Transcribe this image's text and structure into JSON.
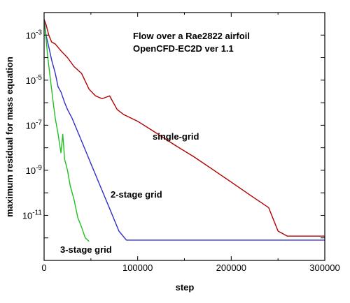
{
  "chart_data": {
    "type": "line",
    "title_lines": [
      "Flow over a Rae2822 airfoil",
      "OpenCFD-EC2D ver 1.1"
    ],
    "xlabel": "step",
    "ylabel": "maximum residual for mass equation",
    "xlim": [
      0,
      300000
    ],
    "ylim": [
      1e-13,
      0.01
    ],
    "y_scale": "log",
    "grid": false,
    "x_ticks": [
      {
        "value": 0,
        "label": "0"
      },
      {
        "value": 100000,
        "label": "100000"
      },
      {
        "value": 200000,
        "label": "200000"
      },
      {
        "value": 300000,
        "label": "300000"
      }
    ],
    "y_ticks": [
      {
        "exp": -3,
        "base": "10",
        "sup": "-3"
      },
      {
        "exp": -5,
        "base": "10",
        "sup": "-5"
      },
      {
        "exp": -7,
        "base": "10",
        "sup": "-7"
      },
      {
        "exp": -9,
        "base": "10",
        "sup": "-9"
      },
      {
        "exp": -11,
        "base": "10",
        "sup": "-11"
      }
    ],
    "series": [
      {
        "name": "single-grid",
        "color": "#b00000",
        "x": [
          0,
          2000,
          5000,
          8000,
          12000,
          18000,
          25000,
          32000,
          40000,
          48000,
          55000,
          62000,
          70000,
          78000,
          85000,
          100000,
          120000,
          140000,
          160000,
          180000,
          200000,
          220000,
          240000,
          250000,
          260000,
          280000,
          300000
        ],
        "y": [
          0.005,
          0.003,
          0.001,
          0.0005,
          0.0004,
          0.0002,
          0.0001,
          4e-05,
          2e-05,
          4e-06,
          2e-06,
          1.5e-06,
          2e-06,
          5e-07,
          3e-07,
          1.5e-07,
          4.5e-08,
          1.3e-08,
          4e-09,
          1.1e-09,
          3e-10,
          8e-11,
          2.2e-11,
          2e-12,
          1.2e-12,
          1.2e-12,
          1.2e-12
        ]
      },
      {
        "name": "2-stage grid",
        "color": "#3030c8",
        "x": [
          0,
          2000,
          5000,
          8000,
          12000,
          15000,
          18000,
          22000,
          25000,
          30000,
          40000,
          50000,
          60000,
          70000,
          80000,
          88000,
          92000,
          100000,
          150000,
          200000,
          250000,
          300000
        ],
        "y": [
          0.005,
          0.001,
          0.0003,
          8e-05,
          2e-05,
          5e-06,
          3e-06,
          1e-06,
          5e-07,
          2e-07,
          2e-08,
          2e-09,
          2e-10,
          2e-11,
          2e-12,
          8e-13,
          8e-13,
          8e-13,
          8e-13,
          8e-13,
          8e-13,
          8e-13
        ]
      },
      {
        "name": "3-stage grid",
        "color": "#20c020",
        "x": [
          0,
          2000,
          4000,
          6000,
          8000,
          10000,
          12000,
          15000,
          18000,
          20000,
          22000,
          25000,
          28000,
          32000,
          36000,
          40000,
          44000,
          48000
        ],
        "y": [
          0.004,
          0.0008,
          0.0001,
          2e-05,
          4e-06,
          8e-07,
          2e-07,
          4e-08,
          6e-09,
          4e-08,
          3e-09,
          1e-09,
          2e-10,
          5e-11,
          8e-12,
          3e-12,
          1e-12,
          7e-13
        ]
      }
    ],
    "annotations": [
      "single-grid",
      "2-stage grid",
      "3-stage grid"
    ]
  }
}
